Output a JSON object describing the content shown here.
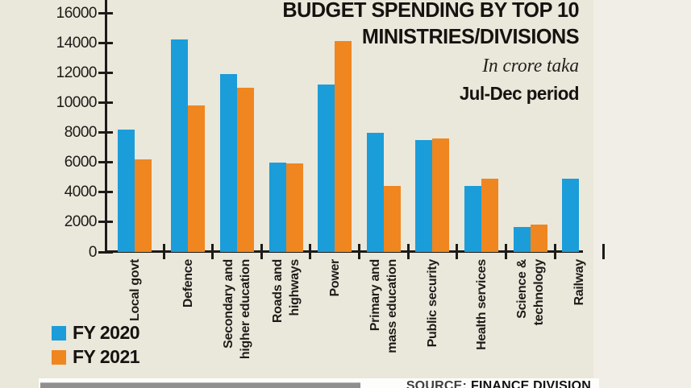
{
  "chart_data": {
    "type": "bar",
    "title": [
      "BUDGET SPENDING BY TOP 10",
      "MINISTRIES/DIVISIONS"
    ],
    "subtitle": "In crore taka",
    "period": "Jul-Dec period",
    "categories": [
      "Local govt",
      "Defence",
      "Secondary and higher education",
      "Roads and highways",
      "Power",
      "Primary and mass education",
      "Public security",
      "Health services",
      "Science & technology",
      "Railway"
    ],
    "category_label_lines": [
      [
        "Local govt"
      ],
      [
        "Defence"
      ],
      [
        "Secondary and",
        "higher education"
      ],
      [
        "Roads and",
        "highways"
      ],
      [
        "Power"
      ],
      [
        "Primary and",
        "mass education"
      ],
      [
        "Public security"
      ],
      [
        "Health services"
      ],
      [
        "Science &",
        "technology"
      ],
      [
        "Railway"
      ]
    ],
    "series": [
      {
        "name": "FY 2020",
        "color": "#1b9dd9",
        "values": [
          8200,
          14200,
          11900,
          6000,
          11200,
          8000,
          7500,
          4400,
          1650,
          4900
        ]
      },
      {
        "name": "FY 2021",
        "color": "#f0861f",
        "values": [
          6200,
          9800,
          11000,
          5900,
          14100,
          4400,
          7600,
          4900,
          1850,
          null
        ]
      }
    ],
    "ylim": [
      0,
      16000
    ],
    "ytick_step": 2000,
    "yticks": [
      "0",
      "2000",
      "4000",
      "6000",
      "8000",
      "10000",
      "12000",
      "14000",
      "16000"
    ],
    "legend_position": "bottom-left",
    "grid": false,
    "note_cut_off": "FY 2021 bar for Railway is cut off at the right edge of the image"
  },
  "source": {
    "label": "SOURCE:",
    "value": "FINANCE DIVISION"
  },
  "colors": {
    "background": "#eae7db",
    "background_right": "#f0eee6",
    "axis": "#1d1b18",
    "fy2020_blue": "#1b9dd9",
    "fy2021_orange": "#f0861f",
    "bottom_bar_gray": "#8f8f8f"
  }
}
